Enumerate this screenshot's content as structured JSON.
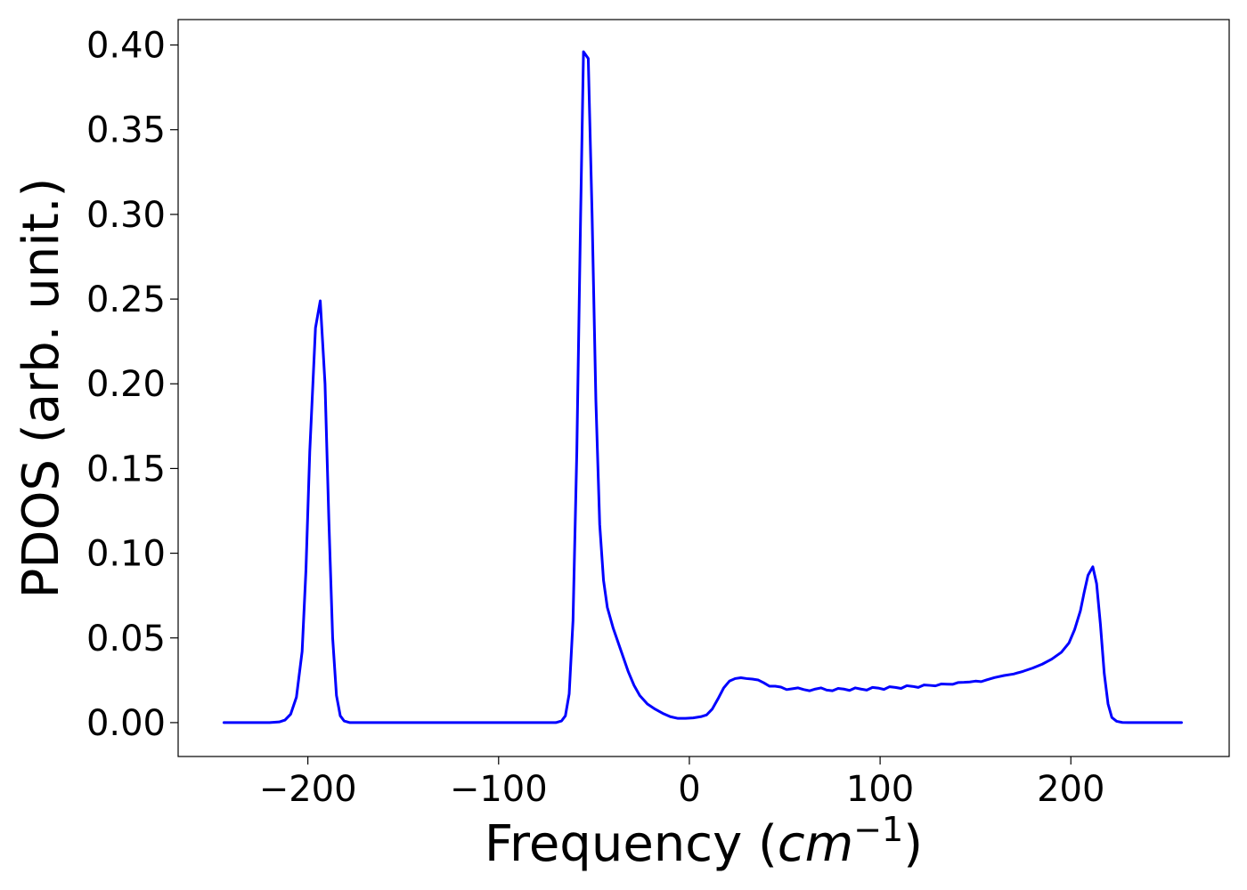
{
  "chart_data": {
    "type": "line",
    "title": "",
    "xlabel": "Frequency",
    "xlabel_unit_base": "cm",
    "xlabel_unit_exp": "−1",
    "ylabel": "PDOS (arb. unit.)",
    "xlim": [
      -268,
      283
    ],
    "ylim": [
      -0.02,
      0.415
    ],
    "grid": false,
    "legend": "none",
    "x_ticks": [
      -200,
      -100,
      0,
      100,
      200
    ],
    "x_tick_labels": [
      "−200",
      "−100",
      "0",
      "100",
      "200"
    ],
    "y_ticks": [
      0.0,
      0.05,
      0.1,
      0.15,
      0.2,
      0.25,
      0.3,
      0.35,
      0.4
    ],
    "y_tick_labels": [
      "0.00",
      "0.05",
      "0.10",
      "0.15",
      "0.20",
      "0.25",
      "0.30",
      "0.35",
      "0.40"
    ],
    "series": [
      {
        "color": "#0000ff",
        "points": [
          [
            -244,
            0.0
          ],
          [
            -220,
            0.0
          ],
          [
            -215,
            0.0004
          ],
          [
            -212,
            0.0015
          ],
          [
            -209,
            0.005
          ],
          [
            -206,
            0.015
          ],
          [
            -203,
            0.042
          ],
          [
            -201,
            0.09
          ],
          [
            -199,
            0.16
          ],
          [
            -196,
            0.233
          ],
          [
            -193.5,
            0.249
          ],
          [
            -191,
            0.2
          ],
          [
            -189,
            0.12
          ],
          [
            -187,
            0.05
          ],
          [
            -185,
            0.016
          ],
          [
            -183,
            0.004
          ],
          [
            -181,
            0.001
          ],
          [
            -178,
            0.0
          ],
          [
            -100,
            0.0
          ],
          [
            -70,
            0.0
          ],
          [
            -67,
            0.001
          ],
          [
            -65,
            0.004
          ],
          [
            -63,
            0.017
          ],
          [
            -61,
            0.06
          ],
          [
            -59,
            0.16
          ],
          [
            -57,
            0.3
          ],
          [
            -55.5,
            0.396
          ],
          [
            -53,
            0.392
          ],
          [
            -51,
            0.3
          ],
          [
            -49,
            0.19
          ],
          [
            -47,
            0.117
          ],
          [
            -45,
            0.084
          ],
          [
            -43,
            0.068
          ],
          [
            -40,
            0.056
          ],
          [
            -36,
            0.043
          ],
          [
            -32,
            0.03
          ],
          [
            -29,
            0.022
          ],
          [
            -26,
            0.016
          ],
          [
            -22,
            0.011
          ],
          [
            -18,
            0.008
          ],
          [
            -14,
            0.0055
          ],
          [
            -10,
            0.0035
          ],
          [
            -6,
            0.0025
          ],
          [
            -2,
            0.0025
          ],
          [
            2,
            0.0028
          ],
          [
            6,
            0.0035
          ],
          [
            9,
            0.0045
          ],
          [
            12,
            0.008
          ],
          [
            15,
            0.014
          ],
          [
            18,
            0.0205
          ],
          [
            21,
            0.0245
          ],
          [
            24,
            0.026
          ],
          [
            27,
            0.0265
          ],
          [
            30,
            0.026
          ],
          [
            33,
            0.0257
          ],
          [
            36,
            0.0252
          ],
          [
            39,
            0.0235
          ],
          [
            42,
            0.0215
          ],
          [
            45,
            0.0215
          ],
          [
            48,
            0.021
          ],
          [
            51,
            0.0195
          ],
          [
            54,
            0.02
          ],
          [
            57,
            0.0205
          ],
          [
            60,
            0.0195
          ],
          [
            63,
            0.0188
          ],
          [
            66,
            0.0198
          ],
          [
            69,
            0.0205
          ],
          [
            72,
            0.0192
          ],
          [
            75,
            0.0188
          ],
          [
            78,
            0.0202
          ],
          [
            81,
            0.0198
          ],
          [
            84,
            0.019
          ],
          [
            87,
            0.0205
          ],
          [
            90,
            0.0198
          ],
          [
            93,
            0.0192
          ],
          [
            96,
            0.0208
          ],
          [
            99,
            0.0204
          ],
          [
            102,
            0.0196
          ],
          [
            105,
            0.0212
          ],
          [
            108,
            0.0208
          ],
          [
            111,
            0.0202
          ],
          [
            114,
            0.0218
          ],
          [
            117,
            0.0214
          ],
          [
            120,
            0.0208
          ],
          [
            123,
            0.0222
          ],
          [
            126,
            0.022
          ],
          [
            129,
            0.0217
          ],
          [
            132,
            0.0228
          ],
          [
            135,
            0.0227
          ],
          [
            138,
            0.0226
          ],
          [
            141,
            0.0237
          ],
          [
            144,
            0.0238
          ],
          [
            147,
            0.024
          ],
          [
            150,
            0.0245
          ],
          [
            153,
            0.0242
          ],
          [
            156,
            0.0253
          ],
          [
            160,
            0.0266
          ],
          [
            165,
            0.0278
          ],
          [
            170,
            0.0287
          ],
          [
            175,
            0.0303
          ],
          [
            180,
            0.0322
          ],
          [
            185,
            0.0345
          ],
          [
            190,
            0.0375
          ],
          [
            195,
            0.0415
          ],
          [
            199,
            0.047
          ],
          [
            202,
            0.055
          ],
          [
            205,
            0.066
          ],
          [
            207,
            0.077
          ],
          [
            209,
            0.087
          ],
          [
            211.5,
            0.092
          ],
          [
            213.5,
            0.082
          ],
          [
            215.5,
            0.058
          ],
          [
            217.5,
            0.029
          ],
          [
            219.5,
            0.011
          ],
          [
            221.5,
            0.003
          ],
          [
            224,
            0.0008
          ],
          [
            227,
            0.0001
          ],
          [
            230,
            0.0
          ],
          [
            258,
            0.0
          ]
        ]
      }
    ]
  }
}
